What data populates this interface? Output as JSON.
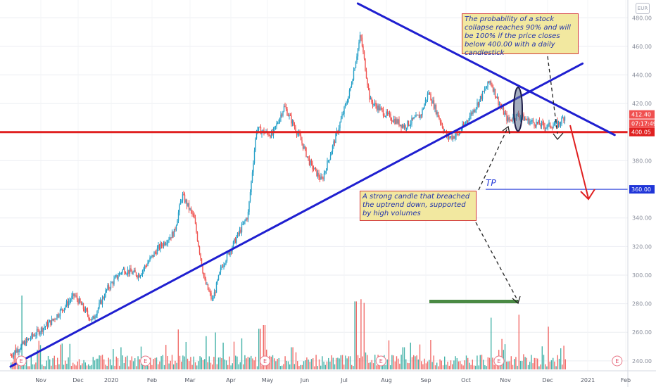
{
  "chart_data": {
    "type": "candlestick-with-volume",
    "title": "",
    "xlabel": "",
    "ylabel": "",
    "x_ticks": [
      "Nov",
      "Dec",
      "2020",
      "Feb",
      "Mar",
      "Apr",
      "May",
      "Jun",
      "Jul",
      "Aug",
      "Sep",
      "Oct",
      "Nov",
      "Dec",
      "2021",
      "Feb"
    ],
    "y_ticks": [
      240,
      260,
      280,
      300,
      320,
      340,
      360,
      380,
      400,
      420,
      440,
      460,
      480
    ],
    "y_tick_labels": [
      "240.00",
      "260.00",
      "280.00",
      "300.00",
      "320.00",
      "340.00",
      "360.00",
      "380.00",
      "400.00",
      "420.00",
      "440.00",
      "460.00",
      "480.00"
    ],
    "ylim": [
      236,
      488
    ],
    "grid": true,
    "price_series": {
      "name": "",
      "points": [
        [
          "Oct 15 2019",
          244
        ],
        [
          "Oct 28 2019",
          258
        ],
        [
          "Nov 10 2019",
          268
        ],
        [
          "Nov 28 2019",
          286
        ],
        [
          "Dec 14 2019",
          268
        ],
        [
          "Dec 28 2019",
          290
        ],
        [
          "Jan 10 2020",
          304
        ],
        [
          "Jan 22 2020",
          300
        ],
        [
          "Feb 5 2020",
          318
        ],
        [
          "Feb 18 2020",
          330
        ],
        [
          "Feb 24 2020",
          356
        ],
        [
          "Mar 4 2020",
          340
        ],
        [
          "Mar 12 2020",
          296
        ],
        [
          "Mar 18 2020",
          282
        ],
        [
          "Mar 25 2020",
          306
        ],
        [
          "Apr 8 2020",
          330
        ],
        [
          "Apr 15 2020",
          342
        ],
        [
          "Apr 22 2020",
          402
        ],
        [
          "May 5 2020",
          398
        ],
        [
          "May 15 2020",
          418
        ],
        [
          "May 28 2020",
          396
        ],
        [
          "Jun 5 2020",
          378
        ],
        [
          "Jun 14 2020",
          366
        ],
        [
          "Jun 25 2020",
          398
        ],
        [
          "Jul 5 2020",
          428
        ],
        [
          "Jul 13 2020",
          468
        ],
        [
          "Jul 20 2020",
          422
        ],
        [
          "Aug 1 2020",
          412
        ],
        [
          "Aug 15 2020",
          404
        ],
        [
          "Aug 28 2020",
          412
        ],
        [
          "Sep 3 2020",
          428
        ],
        [
          "Sep 17 2020",
          396
        ],
        [
          "Sep 25 2020",
          398
        ],
        [
          "Oct 10 2020",
          420
        ],
        [
          "Oct 20 2020",
          436
        ],
        [
          "Oct 28 2020",
          418
        ],
        [
          "Nov 3 2020",
          408
        ],
        [
          "Nov 10 2020",
          412
        ],
        [
          "Nov 17 2020",
          408
        ],
        [
          "Nov 30 2020",
          404
        ],
        [
          "Dec 10 2020",
          406
        ],
        [
          "Dec 15 2020",
          412.4
        ]
      ]
    },
    "volume_series": {
      "name": "",
      "points": [
        [
          "Oct 21 2019",
          100
        ],
        [
          "Nov 18 2019",
          35
        ],
        [
          "Jan 8 2020",
          30
        ],
        [
          "Feb 21 2020",
          40
        ],
        [
          "Mar 13 2020",
          45
        ],
        [
          "Mar 20 2020",
          50
        ],
        [
          "Apr 24 2020",
          55
        ],
        [
          "Apr 28 2020",
          60
        ],
        [
          "May 21 2020",
          30
        ],
        [
          "Jul 9 2020",
          92
        ],
        [
          "Jul 13 2020",
          95
        ],
        [
          "Jul 15 2020",
          90
        ],
        [
          "Aug 14 2020",
          30
        ],
        [
          "Sep 4 2020",
          40
        ],
        [
          "Oct 20 2020",
          45
        ],
        [
          "Nov 10 2020",
          74
        ],
        [
          "Dec 1 2020",
          42
        ]
      ]
    },
    "horizontal_lines": [
      {
        "label": "",
        "value": 400.05,
        "color": "#e02020"
      },
      {
        "label": "TP",
        "value": 360,
        "color": "#1f35d8"
      }
    ],
    "trendlines": [
      {
        "name": "uptrend",
        "from": [
          "Oct 15 2019",
          236
        ],
        "to": [
          "Dec 28 2020",
          448
        ],
        "color": "#1f1fd0"
      },
      {
        "name": "downtrend",
        "from": [
          "Jul 11 2020",
          490
        ],
        "to": [
          "Jan 23 2021",
          398
        ],
        "color": "#1f1fd0"
      }
    ],
    "price_labels": [
      {
        "text": "412.40",
        "value": 412.4,
        "color": "#f05050"
      },
      {
        "text": "07:17:49",
        "value": 407.9,
        "color": "#f05050"
      },
      {
        "text": "400.05",
        "value": 400.05,
        "color": "#e02020"
      },
      {
        "text": "360.00",
        "value": 360,
        "color": "#1f35d8"
      }
    ],
    "annotations": [
      {
        "id": "collapse",
        "text": "The probability of a stock collapse reaches 90% and will be 100% if the price closes below 400.00 with a daily candlestick"
      },
      {
        "id": "breach",
        "text": "A strong candle that breached the uptrend down, supported by high volumes"
      },
      {
        "id": "tp",
        "text": "TP"
      }
    ],
    "event_markers": [
      "E",
      "E",
      "E",
      "E",
      "E",
      "E",
      "E",
      "E"
    ],
    "corner_badge": "EUR"
  }
}
